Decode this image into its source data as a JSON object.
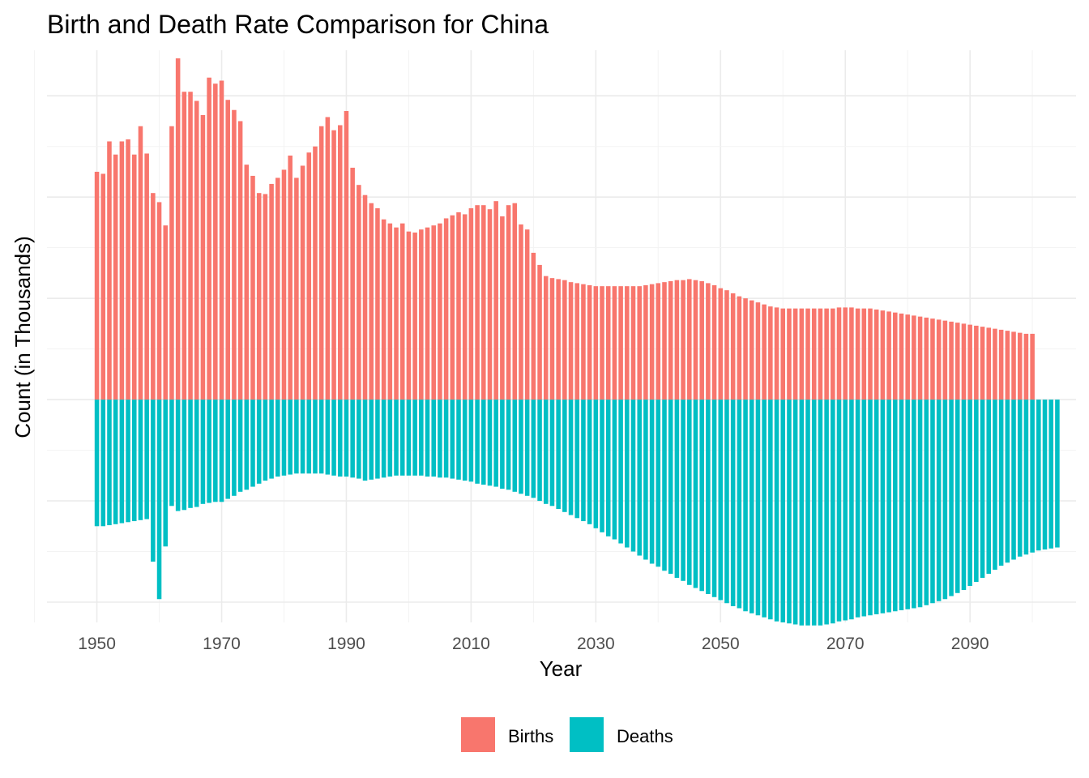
{
  "chart_data": {
    "type": "bar",
    "title": "Birth and Death Rate Comparison for China",
    "xlabel": "Year",
    "ylabel": "Count (in Thousands)",
    "x_ticks": [
      1950,
      1970,
      1990,
      2010,
      2030,
      2050,
      2070,
      2090
    ],
    "xlim": [
      1942,
      2107
    ],
    "ylim": [
      -22000,
      34500
    ],
    "y_tick_labels_visible": false,
    "grid": true,
    "legend_position": "bottom",
    "series": [
      {
        "name": "Births",
        "color": "#F8766D",
        "x_start": 1950,
        "values": [
          22500,
          22300,
          25500,
          24200,
          25500,
          25700,
          24200,
          27000,
          24300,
          20400,
          19500,
          17200,
          27000,
          33700,
          30400,
          30400,
          29500,
          28100,
          31800,
          31200,
          31500,
          29600,
          28600,
          27500,
          23200,
          22100,
          20400,
          20300,
          21300,
          21900,
          22700,
          24100,
          21900,
          23100,
          24400,
          25000,
          27000,
          27900,
          26600,
          27100,
          28500,
          22900,
          21200,
          20200,
          19400,
          18900,
          17800,
          17400,
          17000,
          17400,
          16600,
          16500,
          16800,
          17000,
          17200,
          17400,
          17900,
          18200,
          18500,
          18300,
          18900,
          19200,
          19200,
          18800,
          19600,
          18100,
          19200,
          19400,
          17300,
          16800,
          14500,
          13300,
          12200,
          12000,
          11900,
          11800,
          11600,
          11500,
          11400,
          11300,
          11200,
          11200,
          11200,
          11200,
          11200,
          11200,
          11200,
          11200,
          11300,
          11400,
          11500,
          11600,
          11700,
          11800,
          11800,
          11900,
          11800,
          11700,
          11500,
          11300,
          11000,
          10800,
          10500,
          10200,
          10000,
          9800,
          9600,
          9400,
          9200,
          9100,
          9000,
          9000,
          9000,
          9000,
          9000,
          9000,
          9000,
          9000,
          9000,
          9100,
          9100,
          9100,
          9000,
          9000,
          9000,
          8900,
          8800,
          8700,
          8600,
          8500,
          8400,
          8300,
          8200,
          8100,
          8000,
          7900,
          7800,
          7700,
          7600,
          7500,
          7400,
          7300,
          7200,
          7100,
          7000,
          6900,
          6800,
          6700,
          6600,
          6500,
          6500
        ]
      },
      {
        "name": "Deaths",
        "color": "#00BFC4",
        "x_start": 1950,
        "values": [
          -12500,
          -12500,
          -12400,
          -12300,
          -12200,
          -12100,
          -12000,
          -11900,
          -11800,
          -16000,
          -19700,
          -14500,
          -10500,
          -11000,
          -10900,
          -10700,
          -10600,
          -10300,
          -10200,
          -10100,
          -10100,
          -9800,
          -9500,
          -9100,
          -8900,
          -8600,
          -8300,
          -8000,
          -7800,
          -7600,
          -7500,
          -7400,
          -7300,
          -7300,
          -7300,
          -7300,
          -7300,
          -7400,
          -7500,
          -7600,
          -7600,
          -7700,
          -7800,
          -8000,
          -7900,
          -7800,
          -7700,
          -7600,
          -7500,
          -7500,
          -7500,
          -7500,
          -7500,
          -7600,
          -7600,
          -7700,
          -7700,
          -7800,
          -7900,
          -8000,
          -8100,
          -8300,
          -8400,
          -8500,
          -8600,
          -8800,
          -8900,
          -9100,
          -9300,
          -9500,
          -9700,
          -10000,
          -10300,
          -10500,
          -10800,
          -11100,
          -11400,
          -11700,
          -12000,
          -12300,
          -12700,
          -13100,
          -13500,
          -13800,
          -14200,
          -14600,
          -15000,
          -15400,
          -15800,
          -16200,
          -16500,
          -16900,
          -17200,
          -17600,
          -17900,
          -18300,
          -18600,
          -18900,
          -19200,
          -19500,
          -19800,
          -20100,
          -20400,
          -20600,
          -20900,
          -21100,
          -21300,
          -21500,
          -21700,
          -21900,
          -22000,
          -22100,
          -22200,
          -22300,
          -22300,
          -22300,
          -22300,
          -22200,
          -22100,
          -21900,
          -21800,
          -21700,
          -21500,
          -21400,
          -21300,
          -21200,
          -21100,
          -21000,
          -20900,
          -20800,
          -20700,
          -20600,
          -20500,
          -20300,
          -20100,
          -19900,
          -19700,
          -19400,
          -19100,
          -18800,
          -18400,
          -18000,
          -17600,
          -17200,
          -16800,
          -16400,
          -16100,
          -15800,
          -15500,
          -15300,
          -15100,
          -14900,
          -14800,
          -14700,
          -14600
        ]
      }
    ],
    "legend": [
      {
        "label": "Births",
        "color": "#F8766D"
      },
      {
        "label": "Deaths",
        "color": "#00BFC4"
      }
    ]
  }
}
